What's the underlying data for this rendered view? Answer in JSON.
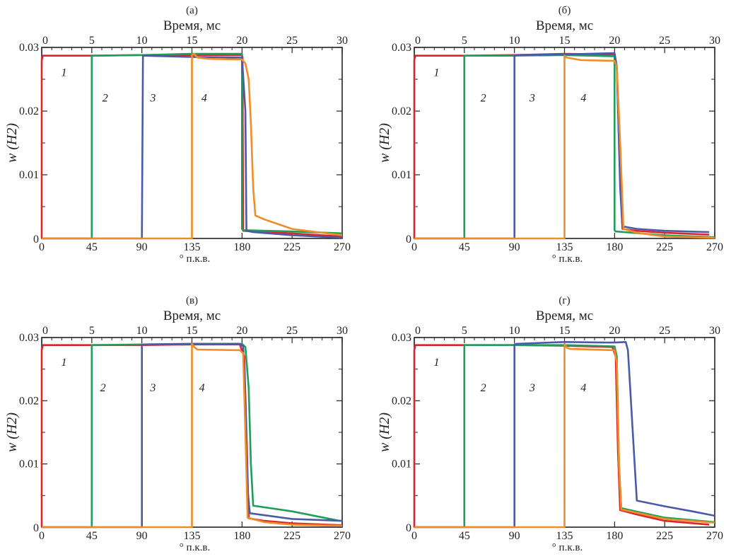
{
  "chart_data": [
    {
      "type": "line",
      "panel_label": "(а)",
      "top_axis_title": "Время, мс",
      "xlabel": "° п.к.в.",
      "ylabel": "w (H2)",
      "xlim": [
        0,
        270
      ],
      "ylim": [
        0,
        0.03
      ],
      "top_xlim": [
        0,
        30
      ],
      "xticks": [
        0,
        45,
        90,
        135,
        180,
        225,
        270
      ],
      "top_xticks": [
        0,
        5,
        10,
        15,
        20,
        25,
        30
      ],
      "yticks": [
        0,
        0.01,
        0.02,
        0.03
      ],
      "ytick_labels": [
        "0",
        "0.01",
        "0.02",
        "0.03"
      ],
      "grid": false,
      "curve_labels": [
        {
          "text": "1",
          "x": 20,
          "y": 0.0255
        },
        {
          "text": "2",
          "x": 57,
          "y": 0.0215
        },
        {
          "text": "3",
          "x": 100,
          "y": 0.0215
        },
        {
          "text": "4",
          "x": 146,
          "y": 0.0215
        }
      ],
      "series": [
        {
          "name": "1",
          "color": "#d9262e",
          "x": [
            0,
            0,
            1,
            45,
            90,
            135,
            180,
            180.5,
            181,
            190,
            225,
            270
          ],
          "y": [
            0,
            0.028,
            0.0287,
            0.0287,
            0.0288,
            0.0288,
            0.0288,
            0.0285,
            0.0012,
            0.0011,
            0.0008,
            0.0003
          ]
        },
        {
          "name": "2",
          "color": "#1e9e5a",
          "x": [
            0,
            45,
            45,
            46,
            90,
            135,
            180,
            180,
            181,
            225,
            270
          ],
          "y": [
            0,
            0,
            0.0287,
            0.0287,
            0.0288,
            0.029,
            0.029,
            0.0015,
            0.0013,
            0.0011,
            0.0008
          ]
        },
        {
          "name": "3",
          "color": "#4a5aa8",
          "x": [
            0,
            90,
            91,
            92,
            135,
            180,
            183,
            184,
            190,
            225,
            270
          ],
          "y": [
            0,
            0,
            0.0287,
            0.0287,
            0.0285,
            0.0284,
            0.02,
            0.0012,
            0.001,
            0.0005,
            0.0001
          ]
        },
        {
          "name": "4",
          "color": "#f28c28",
          "x": [
            0,
            135,
            135,
            137,
            140,
            150,
            180,
            183,
            186,
            188,
            190,
            192,
            200,
            225,
            270
          ],
          "y": [
            0,
            0,
            0.0288,
            0.029,
            0.0284,
            0.0282,
            0.0281,
            0.0275,
            0.025,
            0.018,
            0.008,
            0.0036,
            0.003,
            0.0015,
            0.0005
          ]
        }
      ]
    },
    {
      "type": "line",
      "panel_label": "(б)",
      "top_axis_title": "Время, мс",
      "xlabel": "° п.к.в.",
      "ylabel": "w (H2)",
      "xlim": [
        0,
        270
      ],
      "ylim": [
        0,
        0.03
      ],
      "top_xlim": [
        0,
        30
      ],
      "xticks": [
        0,
        45,
        90,
        135,
        180,
        225,
        270
      ],
      "top_xticks": [
        0,
        5,
        10,
        15,
        20,
        25,
        30
      ],
      "yticks": [
        0,
        0.01,
        0.02,
        0.03
      ],
      "ytick_labels": [
        "0",
        "0.01",
        "0.02",
        "0.03"
      ],
      "grid": false,
      "curve_labels": [
        {
          "text": "1",
          "x": 20,
          "y": 0.0255
        },
        {
          "text": "2",
          "x": 62,
          "y": 0.0215
        },
        {
          "text": "3",
          "x": 106,
          "y": 0.0215
        },
        {
          "text": "4",
          "x": 152,
          "y": 0.0215
        }
      ],
      "series": [
        {
          "name": "1",
          "color": "#d9262e",
          "x": [
            0,
            0,
            1,
            45,
            90,
            135,
            180,
            182,
            185,
            187,
            200,
            225,
            265
          ],
          "y": [
            0,
            0.028,
            0.0287,
            0.0287,
            0.0288,
            0.029,
            0.0289,
            0.027,
            0.01,
            0.0015,
            0.0012,
            0.0009,
            0.0006
          ]
        },
        {
          "name": "2",
          "color": "#1e9e5a",
          "x": [
            0,
            45,
            45,
            46,
            90,
            135,
            180,
            180,
            181,
            225,
            270
          ],
          "y": [
            0,
            0,
            0.0287,
            0.0287,
            0.0287,
            0.0288,
            0.0286,
            0.0013,
            0.0011,
            0.0005,
            0.0002
          ]
        },
        {
          "name": "3",
          "color": "#4a5aa8",
          "x": [
            0,
            90,
            90,
            91,
            135,
            180,
            182,
            185,
            187,
            200,
            225,
            265
          ],
          "y": [
            0,
            0,
            0.0287,
            0.0288,
            0.0289,
            0.0291,
            0.027,
            0.008,
            0.0019,
            0.0015,
            0.0012,
            0.001
          ]
        },
        {
          "name": "4",
          "color": "#f28c28",
          "x": [
            0,
            135,
            135,
            137,
            150,
            180,
            182,
            185,
            188,
            200,
            225,
            270
          ],
          "y": [
            0,
            0,
            0.0287,
            0.0284,
            0.028,
            0.0279,
            0.027,
            0.015,
            0.0015,
            0.0009,
            0.0003,
            0.0001
          ]
        }
      ]
    },
    {
      "type": "line",
      "panel_label": "(в)",
      "top_axis_title": "Время, мс",
      "xlabel": "° п.к.в.",
      "ylabel": "w (H2)",
      "xlim": [
        0,
        270
      ],
      "ylim": [
        0,
        0.03
      ],
      "top_xlim": [
        0,
        30
      ],
      "xticks": [
        0,
        45,
        90,
        135,
        180,
        225,
        270
      ],
      "top_xticks": [
        0,
        5,
        10,
        15,
        20,
        25,
        30
      ],
      "yticks": [
        0,
        0.01,
        0.02,
        0.03
      ],
      "ytick_labels": [
        "0",
        "0.01",
        "0.02",
        "0.03"
      ],
      "grid": false,
      "curve_labels": [
        {
          "text": "1",
          "x": 20,
          "y": 0.0255
        },
        {
          "text": "2",
          "x": 55,
          "y": 0.0215
        },
        {
          "text": "3",
          "x": 100,
          "y": 0.0215
        },
        {
          "text": "4",
          "x": 144,
          "y": 0.0215
        }
      ],
      "series": [
        {
          "name": "1",
          "color": "#d9262e",
          "x": [
            0,
            0,
            1,
            45,
            90,
            135,
            178,
            182,
            184,
            186,
            200,
            225,
            270
          ],
          "y": [
            0,
            0.028,
            0.0288,
            0.0288,
            0.0288,
            0.0289,
            0.0289,
            0.027,
            0.015,
            0.0014,
            0.001,
            0.0006,
            0.0003
          ]
        },
        {
          "name": "2",
          "color": "#1e9e5a",
          "x": [
            0,
            45,
            45,
            46,
            90,
            135,
            180,
            183,
            186,
            188,
            190,
            225,
            268
          ],
          "y": [
            0,
            0,
            0.0288,
            0.0288,
            0.0289,
            0.029,
            0.029,
            0.0285,
            0.022,
            0.01,
            0.0034,
            0.0025,
            0.001
          ]
        },
        {
          "name": "3",
          "color": "#4a5aa8",
          "x": [
            0,
            90,
            90,
            92,
            135,
            178,
            181,
            183,
            185,
            187,
            225,
            270
          ],
          "y": [
            0,
            0,
            0.0289,
            0.0289,
            0.029,
            0.029,
            0.0286,
            0.02,
            0.006,
            0.0022,
            0.0013,
            0.001
          ]
        },
        {
          "name": "4",
          "color": "#f28c28",
          "x": [
            0,
            135,
            135,
            137,
            140,
            178,
            181,
            183,
            185,
            200,
            225,
            270
          ],
          "y": [
            0,
            0,
            0.029,
            0.0285,
            0.0281,
            0.028,
            0.0275,
            0.015,
            0.0015,
            0.0008,
            0.0004,
            0.0002
          ]
        }
      ]
    },
    {
      "type": "line",
      "panel_label": "(г)",
      "top_axis_title": "Время, мс",
      "xlabel": "° п.к.в.",
      "ylabel": "w (H2)",
      "xlim": [
        0,
        270
      ],
      "ylim": [
        0,
        0.03
      ],
      "top_xlim": [
        0,
        30
      ],
      "xticks": [
        0,
        45,
        90,
        135,
        180,
        225,
        270
      ],
      "top_xticks": [
        0,
        5,
        10,
        15,
        20,
        25,
        30
      ],
      "yticks": [
        0,
        0.01,
        0.02,
        0.03
      ],
      "ytick_labels": [
        "0",
        "0.01",
        "0.02",
        "0.03"
      ],
      "grid": false,
      "curve_labels": [
        {
          "text": "1",
          "x": 20,
          "y": 0.0255
        },
        {
          "text": "2",
          "x": 62,
          "y": 0.0215
        },
        {
          "text": "3",
          "x": 106,
          "y": 0.0215
        },
        {
          "text": "4",
          "x": 152,
          "y": 0.0215
        }
      ],
      "series": [
        {
          "name": "1",
          "color": "#d9262e",
          "x": [
            0,
            0,
            1,
            45,
            90,
            135,
            178,
            181,
            183,
            185,
            200,
            225,
            265
          ],
          "y": [
            0,
            0.028,
            0.0288,
            0.0288,
            0.0288,
            0.0287,
            0.0285,
            0.027,
            0.012,
            0.0027,
            0.002,
            0.001,
            0.0004
          ]
        },
        {
          "name": "2",
          "color": "#1e9e5a",
          "x": [
            0,
            45,
            45,
            46,
            90,
            135,
            180,
            182,
            184,
            186,
            225,
            270
          ],
          "y": [
            0,
            0,
            0.0288,
            0.0288,
            0.0288,
            0.0288,
            0.0286,
            0.027,
            0.01,
            0.003,
            0.0015,
            0.0008
          ]
        },
        {
          "name": "3",
          "color": "#4a5aa8",
          "x": [
            0,
            90,
            90,
            92,
            135,
            170,
            180,
            190,
            192,
            194,
            198,
            200,
            225,
            250,
            270
          ],
          "y": [
            0,
            0,
            0.0289,
            0.029,
            0.0293,
            0.0292,
            0.0292,
            0.0293,
            0.028,
            0.022,
            0.01,
            0.0042,
            0.0033,
            0.0025,
            0.0018
          ]
        },
        {
          "name": "4",
          "color": "#f28c28",
          "x": [
            0,
            135,
            135,
            137,
            140,
            180,
            182,
            184,
            186,
            225,
            270
          ],
          "y": [
            0,
            0,
            0.029,
            0.0284,
            0.0282,
            0.028,
            0.026,
            0.01,
            0.0028,
            0.0013,
            0.0007
          ]
        }
      ]
    }
  ]
}
